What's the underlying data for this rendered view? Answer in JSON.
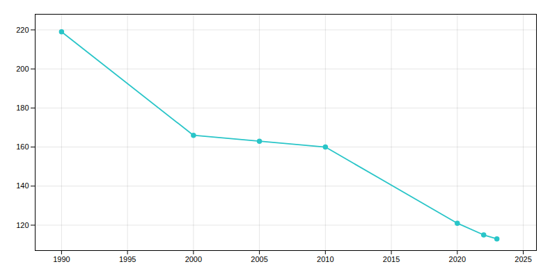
{
  "chart_data": {
    "type": "line",
    "x": [
      1990,
      2000,
      2005,
      2010,
      2020,
      2022,
      2023
    ],
    "values": [
      219,
      166,
      163,
      160,
      121,
      115,
      113
    ],
    "color": "#29C5C8",
    "marker": "circle",
    "xlim": [
      1988,
      2026
    ],
    "xticks": [
      1990,
      1995,
      2000,
      2005,
      2010,
      2015,
      2020,
      2025
    ],
    "ylim": [
      107,
      228
    ],
    "yticks": [
      120,
      140,
      160,
      180,
      200,
      220
    ],
    "grid": true
  }
}
